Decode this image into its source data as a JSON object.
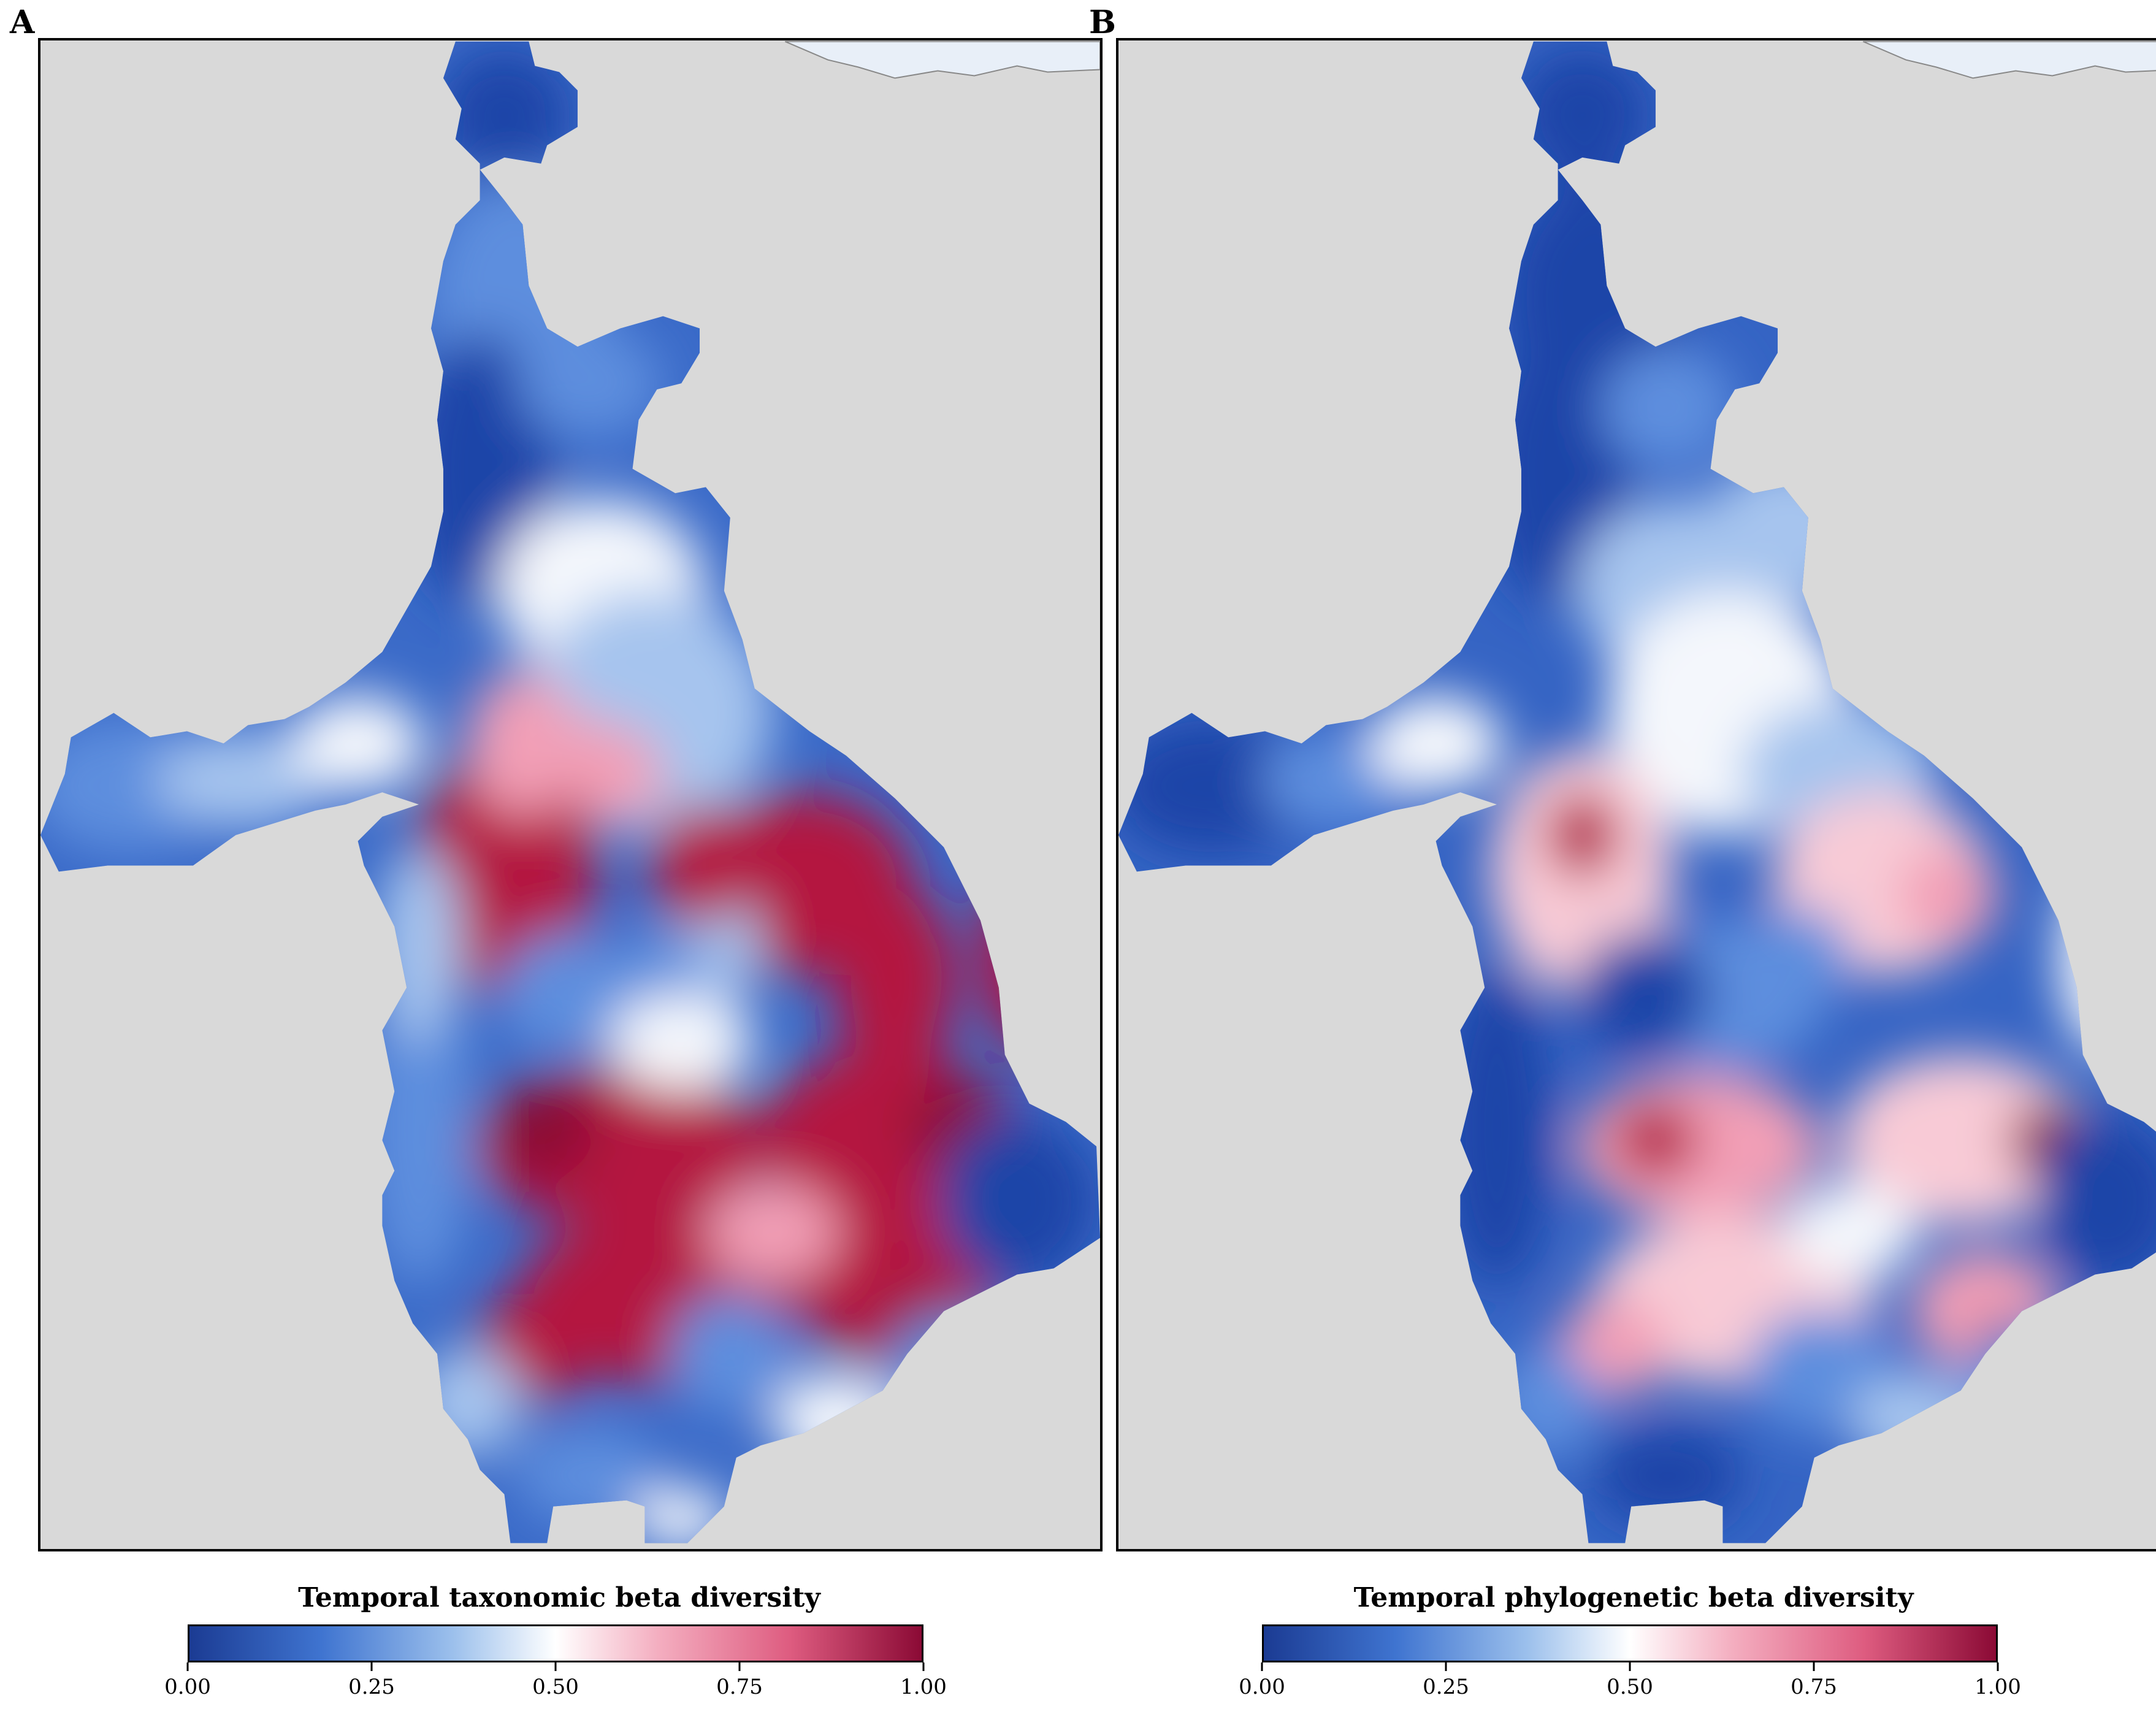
{
  "panels": [
    {
      "letter": "A",
      "legend_title": "Temporal taxonomic beta diversity",
      "pattern": "taxonomic"
    },
    {
      "letter": "B",
      "legend_title": "Temporal phylogenetic beta diversity",
      "pattern": "phylogenetic"
    }
  ],
  "legend": {
    "ticks": [
      "0.00",
      "0.25",
      "0.50",
      "0.75",
      "1.00"
    ],
    "tick_values": [
      0,
      0.25,
      0.5,
      0.75,
      1
    ],
    "range": [
      0,
      1
    ],
    "colors": {
      "low": "#1b3b93",
      "mid": "#ffffff",
      "high": "#8b0a35"
    }
  },
  "map_colors": {
    "background": "#d9d9d9",
    "sea": "#e8eff8",
    "border": "#000000"
  }
}
